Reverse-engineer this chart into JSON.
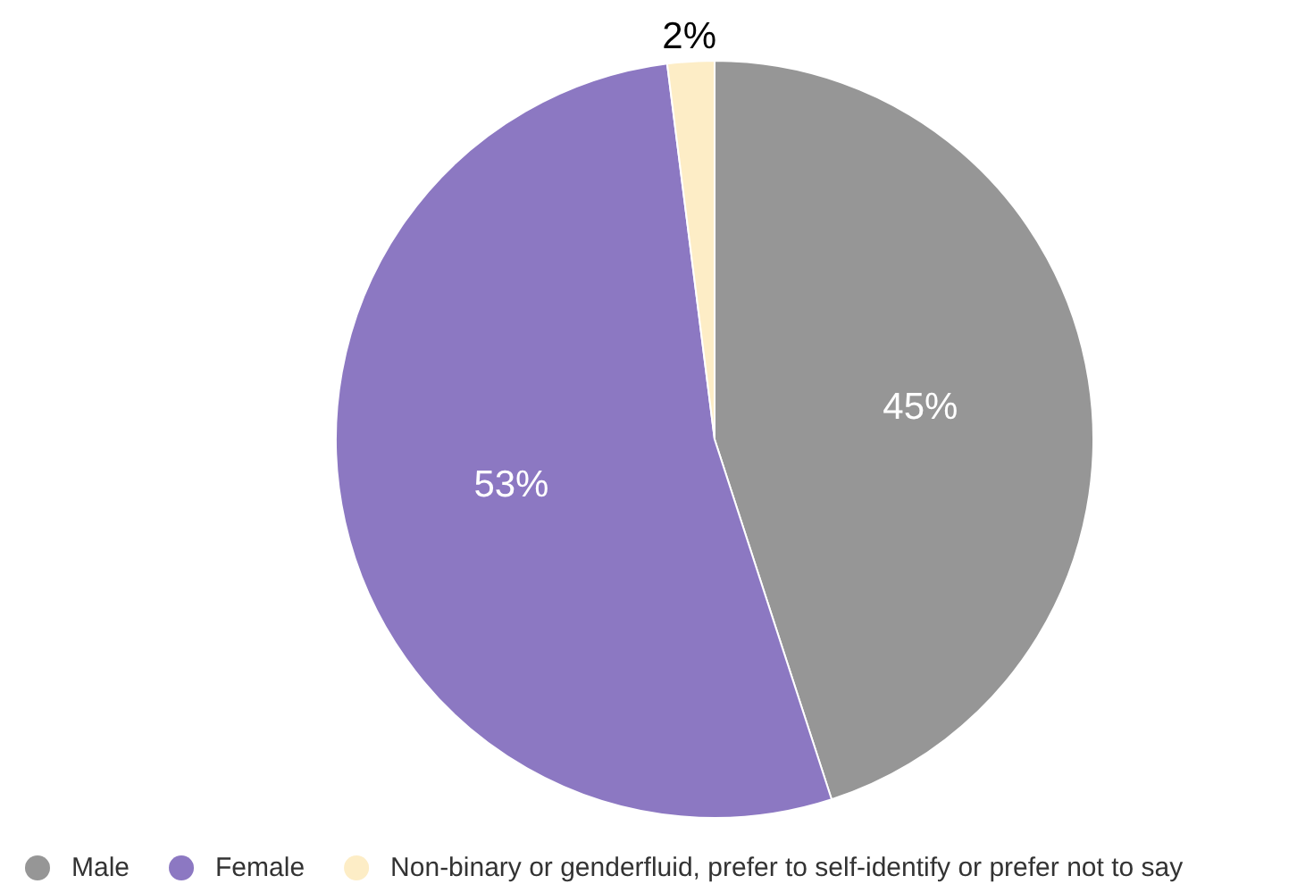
{
  "chart_data": {
    "type": "pie",
    "categories": [
      "Male",
      "Female",
      "Non-binary or genderfluid, prefer to self-identify or prefer not to say"
    ],
    "values": [
      45,
      53,
      2
    ],
    "colors": [
      "#969696",
      "#8c78c2",
      "#fdedc6"
    ],
    "value_labels": [
      "45%",
      "53%",
      "2%"
    ],
    "legend": "bottom"
  }
}
